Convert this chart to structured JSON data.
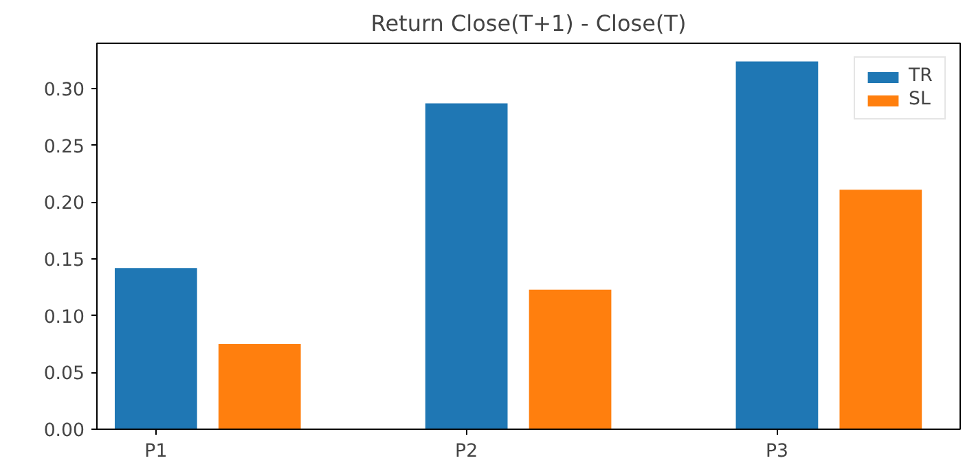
{
  "chart_data": {
    "type": "bar",
    "title": "Return Close(T+1) - Close(T)",
    "categories": [
      "P1",
      "P2",
      "P3"
    ],
    "series": [
      {
        "name": "TR",
        "color": "#1f77b4",
        "values": [
          0.142,
          0.287,
          0.324
        ]
      },
      {
        "name": "SL",
        "color": "#ff7f0e",
        "values": [
          0.075,
          0.123,
          0.211
        ]
      }
    ],
    "ylim": [
      0,
      0.34
    ],
    "yticks": [
      {
        "value": 0,
        "label": "0.00"
      },
      {
        "value": 0.05,
        "label": "0.05"
      },
      {
        "value": 0.1,
        "label": "0.10"
      },
      {
        "value": 0.15,
        "label": "0.15"
      },
      {
        "value": 0.2,
        "label": "0.20"
      },
      {
        "value": 0.25,
        "label": "0.25"
      },
      {
        "value": 0.3,
        "label": "0.30"
      }
    ],
    "legend": "top right",
    "grid": false
  }
}
